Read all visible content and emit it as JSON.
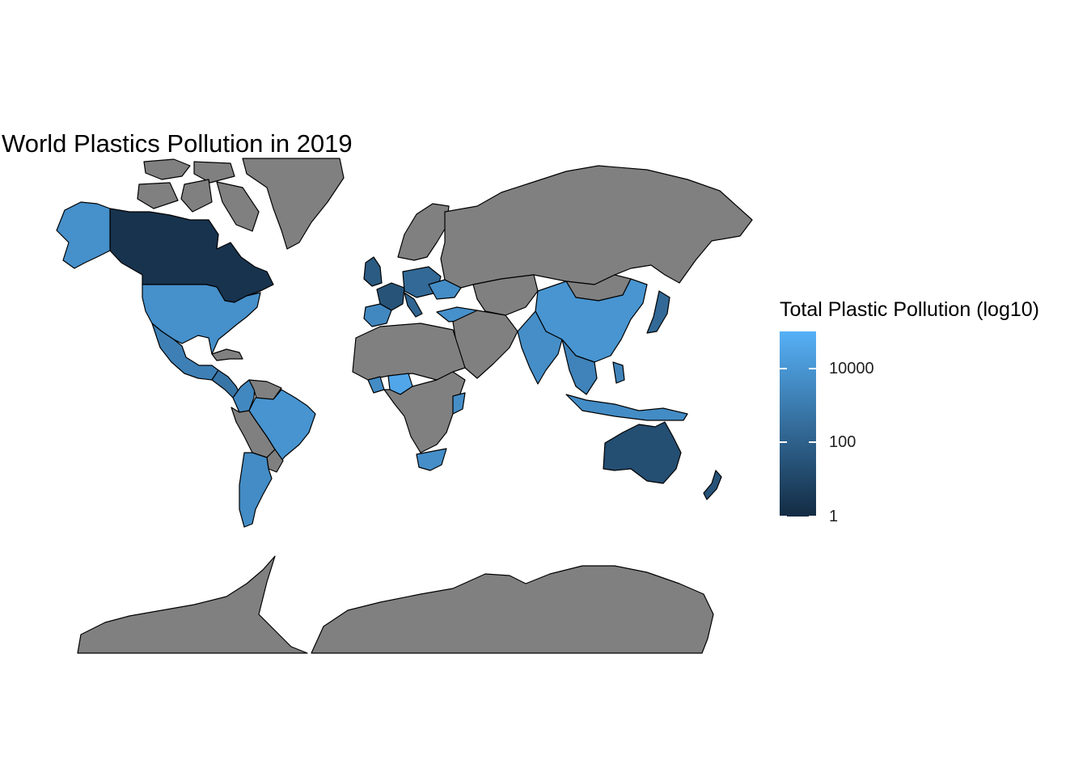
{
  "title": "World Plastics Pollution in 2019",
  "legend": {
    "title": "Total Plastic Pollution (log10)",
    "scale": "log10",
    "range": [
      1,
      100000
    ],
    "color_low": "#132b43",
    "color_high": "#56b1f7",
    "ticks": [
      {
        "label": "10000",
        "value": 10000
      },
      {
        "label": "100",
        "value": 100
      },
      {
        "label": "1",
        "value": 1
      }
    ]
  },
  "na_color": "#808080",
  "background": "#ffffff",
  "chart_data": {
    "type": "map",
    "projection": "mercator",
    "title": "World Plastics Pollution in 2019",
    "scale": "log10",
    "legend_placement": "right",
    "grid": false,
    "regions": [
      {
        "id": "canada",
        "value": 2
      },
      {
        "id": "greenland",
        "value": null
      },
      {
        "id": "alaska-usa",
        "value": 6000
      },
      {
        "id": "usa",
        "value": 6000
      },
      {
        "id": "mexico",
        "value": 1500
      },
      {
        "id": "central-america",
        "value": 600
      },
      {
        "id": "colombia",
        "value": 3000
      },
      {
        "id": "venezuela",
        "value": null
      },
      {
        "id": "brazil",
        "value": 8000
      },
      {
        "id": "peru-bolivia",
        "value": null
      },
      {
        "id": "chile-argentina",
        "value": 4000
      },
      {
        "id": "south-america-interior",
        "value": null
      },
      {
        "id": "uk-ireland",
        "value": 60
      },
      {
        "id": "france",
        "value": 30
      },
      {
        "id": "iberia",
        "value": 3000
      },
      {
        "id": "italy",
        "value": 150
      },
      {
        "id": "central-europe",
        "value": 200
      },
      {
        "id": "scandinavia",
        "value": null
      },
      {
        "id": "ukraine",
        "value": 4000
      },
      {
        "id": "turkey",
        "value": 6000
      },
      {
        "id": "russia",
        "value": null
      },
      {
        "id": "kazakhstan-central-asia",
        "value": null
      },
      {
        "id": "mongolia",
        "value": null
      },
      {
        "id": "china",
        "value": 9000
      },
      {
        "id": "india",
        "value": 5000
      },
      {
        "id": "middle-east",
        "value": null
      },
      {
        "id": "southeast-asia",
        "value": 2000
      },
      {
        "id": "japan",
        "value": 200
      },
      {
        "id": "philippines",
        "value": 2000
      },
      {
        "id": "indonesia",
        "value": 4000
      },
      {
        "id": "australia",
        "value": 20
      },
      {
        "id": "new-zealand",
        "value": 30
      },
      {
        "id": "north-africa",
        "value": null
      },
      {
        "id": "nigeria",
        "value": 40000
      },
      {
        "id": "ghana",
        "value": 4000
      },
      {
        "id": "kenya",
        "value": 5000
      },
      {
        "id": "south-africa",
        "value": 5000
      },
      {
        "id": "central-africa",
        "value": null
      },
      {
        "id": "antarctica",
        "value": null
      }
    ]
  }
}
